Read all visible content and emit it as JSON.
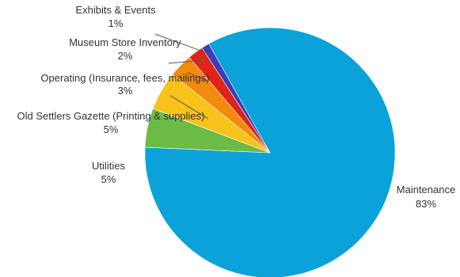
{
  "chart_data": {
    "type": "pie",
    "title": "",
    "slices": [
      {
        "name": "Maintenance",
        "value": 83,
        "value_label": "83%",
        "color": "#0aa2d8"
      },
      {
        "name": "Utilities",
        "value": 5,
        "value_label": "5%",
        "color": "#6cbb47"
      },
      {
        "name": "Old Settlers Gazette (Printing & supplies)",
        "value": 5,
        "value_label": "5%",
        "color": "#f7c21a"
      },
      {
        "name": "Operating (Insurance, fees, mailings)",
        "value": 3,
        "value_label": "3%",
        "color": "#f28a0b"
      },
      {
        "name": "Museum Store Inventory",
        "value": 2,
        "value_label": "2%",
        "color": "#e02418"
      },
      {
        "name": "Exhibits & Events",
        "value": 1,
        "value_label": "1%",
        "color": "#3d3db5"
      }
    ],
    "legend": "none",
    "labels": "outside"
  }
}
